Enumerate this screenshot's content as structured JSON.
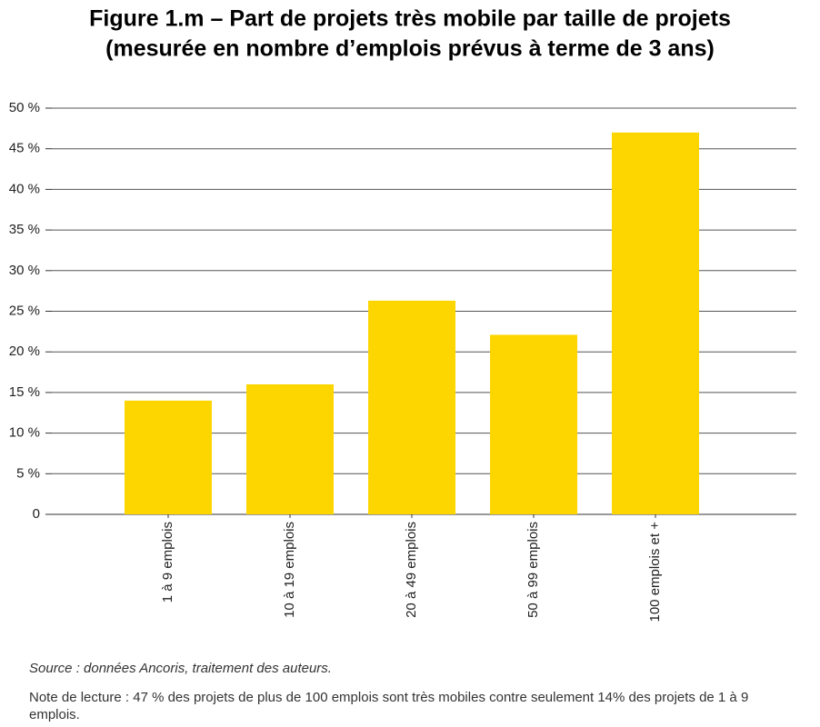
{
  "chart_data": {
    "type": "bar",
    "title": [
      "Figure 1.m – Part de projets très mobile par taille de projets",
      "(mesurée en nombre d’emplois prévus à terme de 3 ans)"
    ],
    "categories": [
      "1 à 9 emplois",
      "10 à 19 emplois",
      "20 à 49 emplois",
      "50 à 99 emplois",
      "100 emplois et +"
    ],
    "values": [
      14,
      16,
      26.3,
      22.1,
      47
    ],
    "color": "#fdd600",
    "ylim": [
      0,
      50
    ],
    "yticks": [
      0,
      {
        "value": 5,
        "label": "5 %"
      },
      {
        "value": 10,
        "label": "10 %"
      },
      {
        "value": 15,
        "label": "15 %"
      },
      {
        "value": 20,
        "label": "20 %"
      },
      {
        "value": 25,
        "label": "25 %"
      },
      {
        "value": 30,
        "label": "30 %"
      },
      {
        "value": 35,
        "label": "35 %"
      },
      {
        "value": 40,
        "label": "40 %"
      },
      {
        "value": 45,
        "label": "45 %"
      },
      {
        "value": 50,
        "label": "50 %"
      }
    ],
    "grid": true,
    "source": "Source : données Ancoris, traitement des auteurs.",
    "note": "Note de lecture : 47 % des projets de plus de 100 emplois sont très mobiles contre seulement 14% des projets de 1 à 9 emplois."
  }
}
